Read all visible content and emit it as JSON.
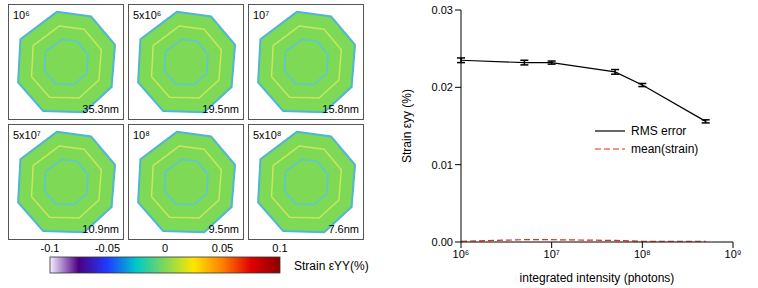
{
  "strain_maps": {
    "panels": [
      {
        "label": "10⁶",
        "resolution": "35.3nm"
      },
      {
        "label": "5x10⁶",
        "resolution": "19.5nm"
      },
      {
        "label": "10⁷",
        "resolution": "15.8nm"
      },
      {
        "label": "5x10⁷",
        "resolution": "10.9nm"
      },
      {
        "label": "10⁸",
        "resolution": "9.5nm"
      },
      {
        "label": "5x10⁸",
        "resolution": "7.6nm"
      }
    ],
    "colorbar": {
      "label": "Strain εYY(%)",
      "range": [
        -0.1,
        0.1
      ],
      "ticks": [
        -0.1,
        -0.05,
        0,
        0.05,
        0.1
      ],
      "colors": [
        "#f4eeff",
        "#4b0082",
        "#1e3cff",
        "#00c8c8",
        "#7ed957",
        "#ffe600",
        "#ff7f00",
        "#e00000",
        "#8b0000"
      ]
    }
  },
  "chart_data": {
    "type": "line",
    "x_label": "integrated intensity (photons)",
    "y_label": "Strain εyy (%)",
    "log": "x",
    "legend": "right",
    "x": [
      1000000,
      5000000,
      10000000,
      50000000,
      100000000,
      500000000
    ],
    "xlim": [
      1000000,
      1000000000
    ],
    "xticks": [
      {
        "value": 1000000,
        "label": "10⁶"
      },
      {
        "value": 10000000,
        "label": "10⁷"
      },
      {
        "value": 100000000,
        "label": "10⁸"
      },
      {
        "value": 1000000000,
        "label": "10⁹"
      }
    ],
    "ylim": [
      0,
      0.03
    ],
    "yticks": [
      {
        "value": 0,
        "label": "0.00"
      },
      0.01,
      0.02,
      0.03
    ],
    "series": [
      {
        "name": "RMS error",
        "color": "#000000",
        "line_style": "solid",
        "values": [
          0.0235,
          0.0232,
          0.0232,
          0.022,
          0.0203,
          0.0156
        ],
        "errors": [
          0.0003,
          0.0003,
          0.0002,
          0.0003,
          0.0002,
          0.0002
        ]
      },
      {
        "name": "mean(strain)",
        "color": "#e03010",
        "line_style": "dashed",
        "values": [
          0.0001,
          0.0003,
          0.0003,
          0.0002,
          0.0001,
          0.0001
        ]
      }
    ]
  }
}
